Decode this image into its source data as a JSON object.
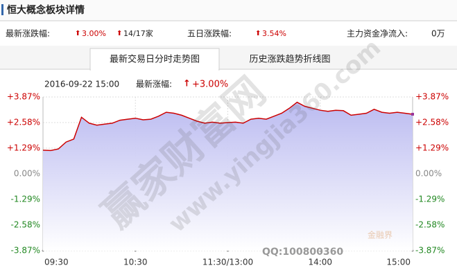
{
  "header": {
    "title": "恒大概念板块详情",
    "latest_label": "最新涨跌幅:",
    "latest_value": "3.00%",
    "rise_count": "14/17家",
    "five_day_label": "五日涨跌幅:",
    "five_day_value": "3.54%",
    "inflow_label": "主力资金净流入:",
    "inflow_value": "0万"
  },
  "tabs": [
    "最新交易日分时走势图",
    "历史涨跌趋势折线图"
  ],
  "watermark": [
    "赢家财富网",
    "www.yingjia360.com",
    "QQ:100800360",
    "金融界"
  ],
  "chart_data": {
    "type": "line",
    "info": {
      "datetime": "2016-09-22  15:00",
      "label": "最新涨幅:",
      "value": "+3.00%"
    },
    "x": [
      0,
      5,
      10,
      15,
      20,
      25,
      30,
      35,
      40,
      45,
      50,
      55,
      60,
      65,
      70,
      75,
      80,
      85,
      90,
      95,
      100,
      105,
      110,
      115,
      120,
      125,
      130,
      135,
      140,
      145,
      150,
      155,
      160,
      165,
      170,
      175,
      180,
      185,
      190,
      195,
      200,
      205,
      210,
      215,
      220,
      225,
      230,
      235,
      240
    ],
    "series": [
      {
        "color": "#cc0000",
        "values": [
          1.19,
          1.17,
          1.25,
          1.6,
          1.75,
          2.85,
          2.55,
          2.45,
          2.5,
          2.55,
          2.7,
          2.75,
          2.8,
          2.72,
          2.75,
          2.9,
          3.1,
          3.05,
          2.95,
          2.8,
          2.65,
          2.55,
          2.6,
          2.55,
          2.58,
          2.6,
          2.55,
          2.75,
          2.8,
          2.75,
          2.9,
          3.05,
          3.3,
          3.6,
          3.4,
          3.3,
          3.2,
          3.15,
          3.2,
          3.18,
          2.95,
          3.0,
          3.05,
          3.25,
          3.1,
          3.05,
          3.1,
          3.05,
          3.0
        ]
      }
    ],
    "xlim": [
      0,
      240
    ],
    "xticks": [
      {
        "value": 0,
        "label": "09:30"
      },
      {
        "value": 60,
        "label": "10:30"
      },
      {
        "value": 120,
        "label": "11:30/13:00"
      },
      {
        "value": 180,
        "label": "14:00"
      },
      {
        "value": 240,
        "label": "15:00"
      }
    ],
    "ylim": [
      -3.87,
      3.87
    ],
    "yticks": [
      {
        "value": 3.87,
        "label": "+3.87%"
      },
      {
        "value": 2.58,
        "label": "+2.58%"
      },
      {
        "value": 1.29,
        "label": "+1.29%"
      },
      {
        "value": 0,
        "label": "0.00%"
      },
      {
        "value": -1.29,
        "label": "-1.29%"
      },
      {
        "value": -2.58,
        "label": "-2.58%"
      },
      {
        "value": -3.87,
        "label": "-3.87%"
      }
    ],
    "grid": true,
    "area_color": "#b8b8f0"
  }
}
